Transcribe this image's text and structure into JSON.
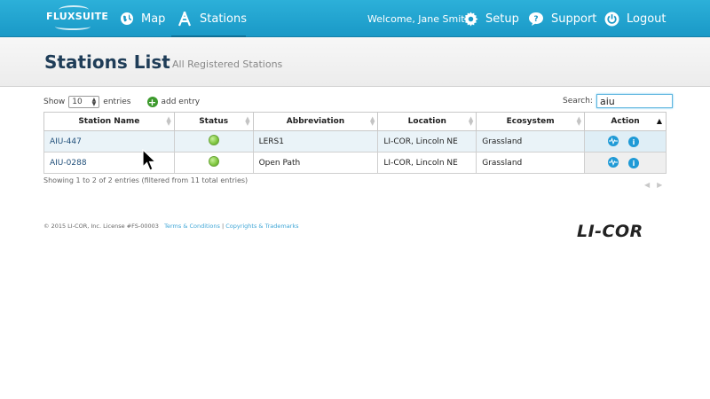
{
  "nav": {
    "logo": "FLUXSUITE",
    "map": "Map",
    "stations": "Stations",
    "welcome": "Welcome, Jane Smith",
    "setup": "Setup",
    "support": "Support",
    "logout": "Logout"
  },
  "header": {
    "title": "Stations List",
    "subtitle": "All Registered Stations"
  },
  "controls": {
    "show_label": "Show",
    "entries_value": "10",
    "entries_label": "entries",
    "add_entry": "add entry",
    "search_label": "Search:",
    "search_value": "aiu"
  },
  "table": {
    "columns": [
      "Station Name",
      "Status",
      "Abbreviation",
      "Location",
      "Ecosystem",
      "Action"
    ],
    "rows": [
      {
        "name": "AIU-447",
        "status": "green",
        "abbreviation": "LERS1",
        "location": "LI-COR, Lincoln NE",
        "ecosystem": "Grassland"
      },
      {
        "name": "AIU-0288",
        "status": "green",
        "abbreviation": "Open Path",
        "location": "LI-COR, Lincoln NE",
        "ecosystem": "Grassland"
      }
    ],
    "info": "Showing 1 to 2 of 2 entries (filtered from 11 total entries)"
  },
  "footer": {
    "copyright": "© 2015 LI-COR, Inc.   License #FS-00003",
    "terms": "Terms & Conditions",
    "separator": "|",
    "copyrights": "Copyrights & Trademarks",
    "brand": "LI-COR"
  },
  "colors": {
    "nav_bg": "#2cb0d9",
    "title": "#1f3d58",
    "link": "#1f4e79",
    "status_ok": "#7fc63e",
    "action_icon": "#1f9ad6"
  }
}
